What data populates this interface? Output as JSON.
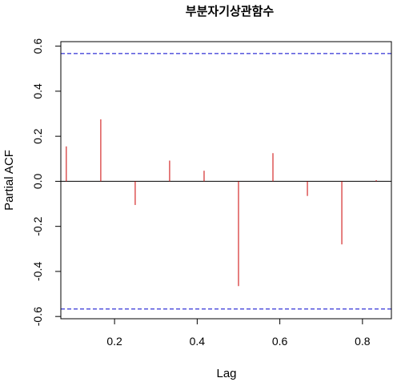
{
  "chart_data": {
    "type": "bar",
    "title": "부분자기상관함수",
    "xlabel": "Lag",
    "ylabel": "Partial ACF",
    "xlim": [
      0.07,
      0.87
    ],
    "ylim": [
      -0.61,
      0.62
    ],
    "x_ticks": [
      0.2,
      0.4,
      0.6,
      0.8
    ],
    "x_tick_labels": [
      "0.2",
      "0.4",
      "0.6",
      "0.8"
    ],
    "y_ticks": [
      -0.6,
      -0.4,
      -0.2,
      0.0,
      0.2,
      0.4,
      0.6
    ],
    "y_tick_labels": [
      "-0.6",
      "-0.4",
      "-0.2",
      "0.0",
      "0.2",
      "0.4",
      "0.6"
    ],
    "series": [
      {
        "x": [
          0.0833,
          0.1667,
          0.25,
          0.3333,
          0.4167,
          0.5,
          0.5833,
          0.6667,
          0.75,
          0.8333
        ],
        "values": [
          0.155,
          0.275,
          -0.105,
          0.092,
          0.047,
          -0.465,
          0.125,
          -0.065,
          -0.28,
          0.005
        ],
        "color": "#cc0000"
      }
    ],
    "confidence_bounds": [
      0.567,
      -0.567
    ],
    "confidence_color": "#0000cc",
    "zero_line": true,
    "grid": false
  }
}
